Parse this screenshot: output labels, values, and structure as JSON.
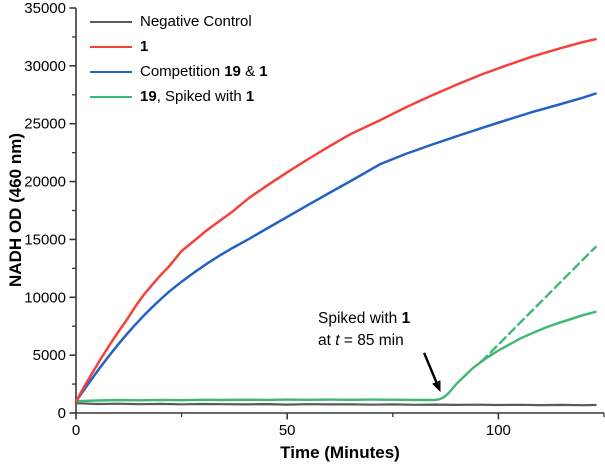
{
  "chart_data": {
    "type": "line",
    "title": "",
    "xlabel": "Time (Minutes)",
    "ylabel": "NADH OD (460 nm)",
    "xlim": [
      0,
      125
    ],
    "ylim": [
      0,
      35000
    ],
    "grid": false,
    "background": "#ffffff",
    "axis_color": "#383838",
    "text_color": "#000000",
    "x_major_ticks": [
      0,
      50,
      100
    ],
    "x_minor_ticks": [
      25,
      75,
      125
    ],
    "y_major_ticks": [
      0,
      5000,
      10000,
      15000,
      20000,
      25000,
      30000,
      35000
    ],
    "y_minor_ticks": [
      2500,
      7500,
      12500,
      17500,
      22500,
      27500,
      32500
    ],
    "legend": {
      "position": "top-left",
      "items": [
        {
          "series": "negative-control",
          "color": "#5a5a5a",
          "parts": [
            {
              "text": "Negative Control"
            }
          ]
        },
        {
          "series": "compound-1",
          "color": "#f5413c",
          "parts": [
            {
              "text": "1",
              "bold": true
            }
          ]
        },
        {
          "series": "competition-19-and-1",
          "color": "#2361c4",
          "parts": [
            {
              "text": "Competition "
            },
            {
              "text": "19",
              "bold": true
            },
            {
              "text": " & "
            },
            {
              "text": "1",
              "bold": true
            }
          ]
        },
        {
          "series": "19-spiked-with-1",
          "color": "#3eb874",
          "parts": [
            {
              "text": "19",
              "bold": true
            },
            {
              "text": ", Spiked with "
            },
            {
              "text": "1",
              "bold": true
            }
          ]
        }
      ]
    },
    "series": [
      {
        "name": "Negative Control",
        "color": "#5a5a5a",
        "width": 2.2,
        "dash": null,
        "x": [
          0,
          5,
          10,
          15,
          20,
          25,
          30,
          35,
          40,
          45,
          50,
          55,
          60,
          65,
          70,
          75,
          80,
          85,
          90,
          95,
          100,
          105,
          110,
          115,
          120,
          123
        ],
        "y": [
          850,
          780,
          800,
          760,
          790,
          750,
          780,
          760,
          740,
          770,
          730,
          760,
          740,
          750,
          720,
          740,
          710,
          730,
          700,
          720,
          690,
          710,
          680,
          700,
          670,
          690
        ]
      },
      {
        "name": "19, Spiked with 1",
        "color": "#3eb874",
        "width": 2.4,
        "dash": null,
        "x": [
          0,
          5,
          10,
          15,
          20,
          25,
          30,
          35,
          40,
          45,
          50,
          55,
          60,
          65,
          70,
          75,
          80,
          83,
          85,
          86,
          87,
          88,
          89,
          90,
          92,
          94,
          96,
          98,
          100,
          102,
          105,
          108,
          111,
          114,
          117,
          120,
          123
        ],
        "y": [
          1020,
          1080,
          1120,
          1100,
          1130,
          1110,
          1140,
          1120,
          1150,
          1130,
          1160,
          1140,
          1160,
          1140,
          1160,
          1150,
          1130,
          1120,
          1130,
          1180,
          1350,
          1650,
          2050,
          2500,
          3200,
          3900,
          4450,
          4950,
          5400,
          5800,
          6400,
          6900,
          7350,
          7750,
          8100,
          8450,
          8750
        ]
      },
      {
        "name": "19, Spiked with 1 (projection)",
        "color": "#3eb874",
        "width": 2.4,
        "dash": "8 5",
        "x": [
          96,
          99,
          102,
          105,
          108,
          111,
          114,
          117,
          120,
          123
        ],
        "y": [
          4450,
          5550,
          6650,
          7750,
          8850,
          9950,
          11050,
          12150,
          13250,
          14350
        ]
      },
      {
        "name": "Competition 19 & 1",
        "color": "#2361c4",
        "width": 2.5,
        "dash": null,
        "x": [
          0,
          2,
          4,
          6,
          8,
          10,
          12,
          14,
          16,
          18,
          20,
          22,
          25,
          28,
          31,
          34,
          37,
          41,
          45,
          50,
          55,
          60,
          65,
          72,
          78,
          84,
          90,
          96,
          102,
          108,
          114,
          120,
          123
        ],
        "y": [
          1000,
          2050,
          3080,
          4070,
          5020,
          5930,
          6800,
          7620,
          8400,
          9130,
          9820,
          10470,
          11350,
          12150,
          12900,
          13600,
          14250,
          15050,
          15900,
          16950,
          17990,
          19020,
          20040,
          21500,
          22380,
          23160,
          23900,
          24620,
          25320,
          26000,
          26620,
          27250,
          27600
        ]
      },
      {
        "name": "1",
        "color": "#f5413c",
        "width": 2.5,
        "dash": null,
        "x": [
          0,
          2,
          4,
          6,
          8,
          10,
          12,
          14,
          16,
          18,
          20,
          22,
          25,
          28,
          31,
          34,
          37,
          41,
          45,
          50,
          55,
          60,
          65,
          72,
          78,
          84,
          90,
          96,
          102,
          108,
          114,
          120,
          123
        ],
        "y": [
          1000,
          2300,
          3550,
          4750,
          5900,
          7000,
          8050,
          9170,
          10200,
          11050,
          11900,
          12650,
          14000,
          14900,
          15800,
          16600,
          17400,
          18600,
          19600,
          20800,
          21950,
          23050,
          24100,
          25300,
          26400,
          27400,
          28350,
          29250,
          30050,
          30800,
          31450,
          32050,
          32300
        ]
      }
    ],
    "annotation": {
      "lines": [
        [
          {
            "text": "Spiked with "
          },
          {
            "text": "1",
            "bold": true
          }
        ],
        [
          {
            "text": "at "
          },
          {
            "text": "t",
            "italic": true
          },
          {
            "text": " = 85 min"
          }
        ]
      ],
      "arrow": {
        "from_t": 82.4,
        "from_v": 5200,
        "to_t": 86.3,
        "to_v": 1800
      }
    }
  }
}
